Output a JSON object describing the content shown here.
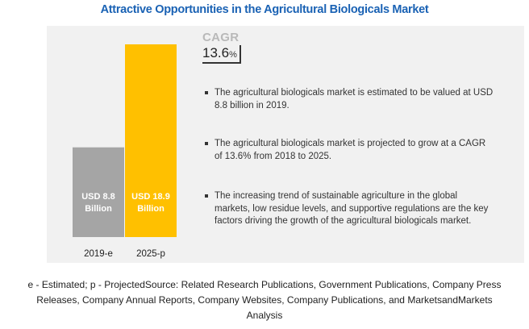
{
  "title": "Attractive Opportunities in the Agricultural Biologicals Market",
  "cagr": {
    "label": "CAGR",
    "value": "13.6",
    "unit": "%"
  },
  "bullets": [
    "The agricultural biologicals market is estimated to be valued at USD 8.8 billion in 2019.",
    "The agricultural biologicals market is projected to grow at a CAGR of 13.6% from 2018 to 2025.",
    "The increasing trend of sustainable agriculture in the global markets, low residue levels, and supportive regulations are the key factors driving the growth of the agricultural biologicals market."
  ],
  "footer": {
    "line1": "e - Estimated; p - ProjectedSource: Related Research Publications, Government Publications, Company Press",
    "line2": "Releases, Company Annual Reports, Company Websites, Company Publications, and MarketsandMarkets",
    "line3": "Analysis"
  },
  "chart_data": {
    "type": "bar",
    "title": "Attractive Opportunities in the Agricultural Biologicals Market",
    "categories": [
      "2019-e",
      "2025-p"
    ],
    "values": [
      8.8,
      18.9
    ],
    "unit": "USD Billion",
    "data_labels": [
      [
        "USD 8.8",
        "Billion"
      ],
      [
        "USD 18.9",
        "Billion"
      ]
    ],
    "colors": [
      "#a5a5a5",
      "#ffc000"
    ],
    "ylim": [
      0,
      18.9
    ],
    "grid": false
  }
}
